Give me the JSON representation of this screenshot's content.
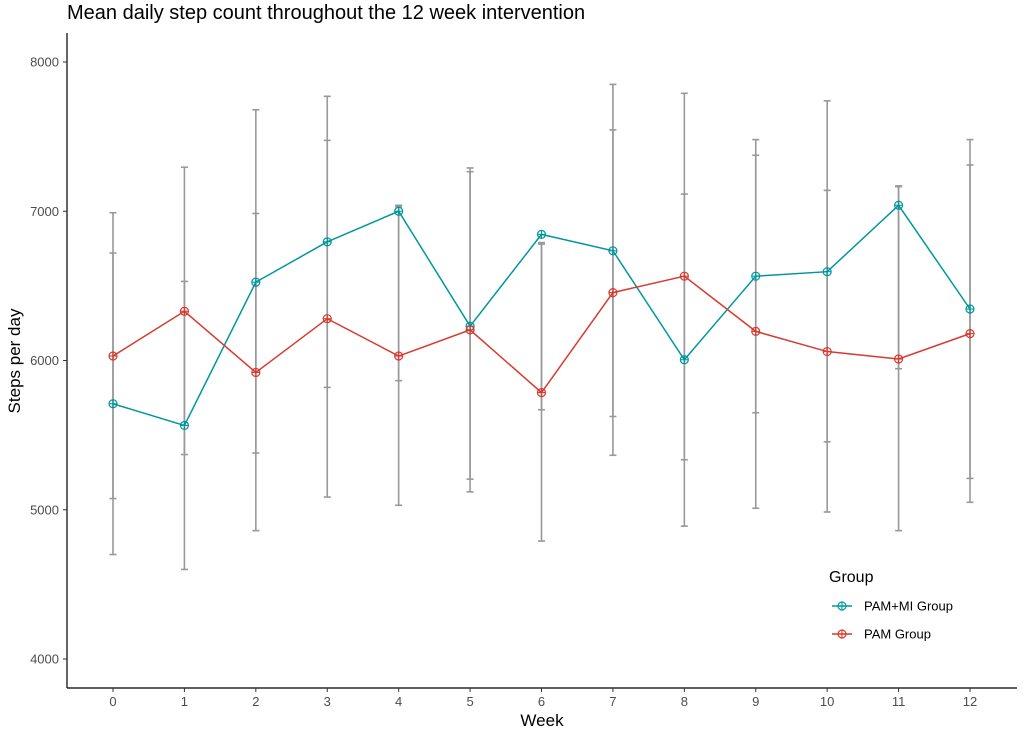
{
  "chart_data": {
    "type": "line",
    "title": "Mean daily step count throughout the 12 week intervention",
    "xlabel": "Week",
    "ylabel": "Steps per day",
    "x": [
      0,
      1,
      2,
      3,
      4,
      5,
      6,
      7,
      8,
      9,
      10,
      11,
      12
    ],
    "ylim": [
      3800,
      8200
    ],
    "yticks": [
      4000,
      5000,
      6000,
      7000,
      8000
    ],
    "grid": false,
    "legend": {
      "title": "Group",
      "position": "bottom-right"
    },
    "series": [
      {
        "name": "PAM+MI Group",
        "color": "#00979C",
        "values": [
          5710,
          5565,
          6525,
          6795,
          7000,
          6230,
          6845,
          6735,
          6005,
          6565,
          6595,
          7040,
          6345
        ],
        "error_low": [
          4700,
          4600,
          4860,
          5085,
          5030,
          5120,
          4790,
          5365,
          4890,
          5010,
          4985,
          4860,
          5050
        ],
        "error_high": [
          6720,
          6530,
          7680,
          7770,
          7040,
          7290,
          6790,
          7850,
          7790,
          7480,
          7740,
          7170,
          7310
        ]
      },
      {
        "name": "PAM Group",
        "color": "#D73A2F",
        "values": [
          6030,
          6330,
          5920,
          6280,
          6030,
          6205,
          5785,
          6455,
          6565,
          6195,
          6060,
          6010,
          6180
        ],
        "error_low": [
          5075,
          5370,
          5380,
          5820,
          5865,
          5205,
          5670,
          5625,
          5335,
          5650,
          5455,
          5945,
          5210
        ],
        "error_high": [
          6990,
          7295,
          6985,
          7475,
          7030,
          7265,
          6780,
          7545,
          7115,
          7375,
          7140,
          7165,
          7480
        ]
      }
    ]
  }
}
